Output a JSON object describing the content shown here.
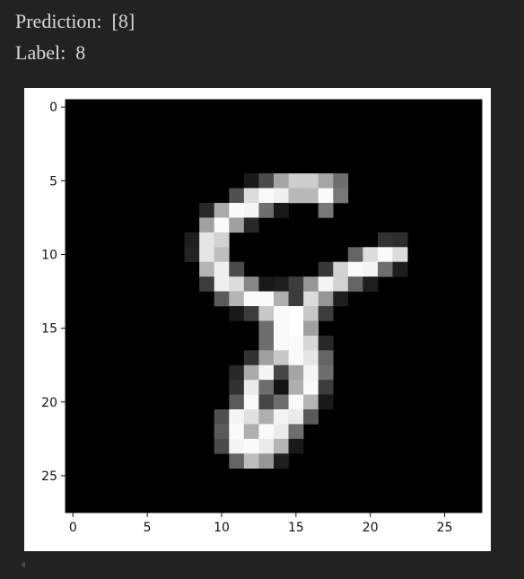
{
  "output": {
    "prediction_label": "Prediction:",
    "prediction_value": "[8]",
    "label_label": "Label:",
    "label_value": "8"
  },
  "chart_data": {
    "type": "heatmap",
    "colormap": "gray",
    "xlim": [
      -0.5,
      27.5
    ],
    "ylim": [
      27.5,
      -0.5
    ],
    "x_ticks": [
      0,
      5,
      10,
      15,
      20,
      25
    ],
    "y_ticks": [
      0,
      5,
      10,
      15,
      20,
      25
    ],
    "grid": false,
    "pixels": [
      {
        "r": 5,
        "c": 12,
        "v": 25
      },
      {
        "r": 5,
        "c": 13,
        "v": 75
      },
      {
        "r": 5,
        "c": 14,
        "v": 165
      },
      {
        "r": 5,
        "c": 15,
        "v": 205
      },
      {
        "r": 5,
        "c": 16,
        "v": 205
      },
      {
        "r": 5,
        "c": 17,
        "v": 165
      },
      {
        "r": 5,
        "c": 18,
        "v": 110
      },
      {
        "r": 6,
        "c": 11,
        "v": 80
      },
      {
        "r": 6,
        "c": 12,
        "v": 220
      },
      {
        "r": 6,
        "c": 13,
        "v": 250
      },
      {
        "r": 6,
        "c": 14,
        "v": 240
      },
      {
        "r": 6,
        "c": 15,
        "v": 185
      },
      {
        "r": 6,
        "c": 16,
        "v": 185
      },
      {
        "r": 6,
        "c": 17,
        "v": 250
      },
      {
        "r": 6,
        "c": 18,
        "v": 120
      },
      {
        "r": 7,
        "c": 9,
        "v": 40
      },
      {
        "r": 7,
        "c": 10,
        "v": 170
      },
      {
        "r": 7,
        "c": 11,
        "v": 250
      },
      {
        "r": 7,
        "c": 12,
        "v": 245
      },
      {
        "r": 7,
        "c": 13,
        "v": 110
      },
      {
        "r": 7,
        "c": 14,
        "v": 25
      },
      {
        "r": 7,
        "c": 17,
        "v": 120
      },
      {
        "r": 8,
        "c": 9,
        "v": 160
      },
      {
        "r": 8,
        "c": 10,
        "v": 250
      },
      {
        "r": 8,
        "c": 11,
        "v": 160
      },
      {
        "r": 8,
        "c": 12,
        "v": 40
      },
      {
        "r": 9,
        "c": 8,
        "v": 30
      },
      {
        "r": 9,
        "c": 9,
        "v": 230
      },
      {
        "r": 9,
        "c": 10,
        "v": 210
      },
      {
        "r": 9,
        "c": 21,
        "v": 50
      },
      {
        "r": 9,
        "c": 22,
        "v": 45
      },
      {
        "r": 10,
        "c": 8,
        "v": 35
      },
      {
        "r": 10,
        "c": 9,
        "v": 230
      },
      {
        "r": 10,
        "c": 10,
        "v": 190
      },
      {
        "r": 10,
        "c": 19,
        "v": 100
      },
      {
        "r": 10,
        "c": 20,
        "v": 220
      },
      {
        "r": 10,
        "c": 21,
        "v": 250
      },
      {
        "r": 10,
        "c": 22,
        "v": 220
      },
      {
        "r": 11,
        "c": 9,
        "v": 180
      },
      {
        "r": 11,
        "c": 10,
        "v": 240
      },
      {
        "r": 11,
        "c": 11,
        "v": 75
      },
      {
        "r": 11,
        "c": 17,
        "v": 55
      },
      {
        "r": 11,
        "c": 18,
        "v": 210
      },
      {
        "r": 11,
        "c": 19,
        "v": 250
      },
      {
        "r": 11,
        "c": 20,
        "v": 245
      },
      {
        "r": 11,
        "c": 21,
        "v": 110
      },
      {
        "r": 11,
        "c": 22,
        "v": 30
      },
      {
        "r": 12,
        "c": 9,
        "v": 60
      },
      {
        "r": 12,
        "c": 10,
        "v": 240
      },
      {
        "r": 12,
        "c": 11,
        "v": 220
      },
      {
        "r": 12,
        "c": 12,
        "v": 135
      },
      {
        "r": 12,
        "c": 13,
        "v": 25
      },
      {
        "r": 12,
        "c": 14,
        "v": 30
      },
      {
        "r": 12,
        "c": 15,
        "v": 60
      },
      {
        "r": 12,
        "c": 16,
        "v": 150
      },
      {
        "r": 12,
        "c": 17,
        "v": 245
      },
      {
        "r": 12,
        "c": 18,
        "v": 210
      },
      {
        "r": 12,
        "c": 19,
        "v": 100
      },
      {
        "r": 12,
        "c": 20,
        "v": 30
      },
      {
        "r": 13,
        "c": 10,
        "v": 90
      },
      {
        "r": 13,
        "c": 11,
        "v": 180
      },
      {
        "r": 13,
        "c": 12,
        "v": 250
      },
      {
        "r": 13,
        "c": 13,
        "v": 250
      },
      {
        "r": 13,
        "c": 14,
        "v": 175
      },
      {
        "r": 13,
        "c": 15,
        "v": 60
      },
      {
        "r": 13,
        "c": 16,
        "v": 220
      },
      {
        "r": 13,
        "c": 17,
        "v": 150
      },
      {
        "r": 13,
        "c": 18,
        "v": 30
      },
      {
        "r": 14,
        "c": 11,
        "v": 25
      },
      {
        "r": 14,
        "c": 12,
        "v": 60
      },
      {
        "r": 14,
        "c": 13,
        "v": 200
      },
      {
        "r": 14,
        "c": 14,
        "v": 250
      },
      {
        "r": 14,
        "c": 15,
        "v": 255
      },
      {
        "r": 14,
        "c": 16,
        "v": 200
      },
      {
        "r": 14,
        "c": 17,
        "v": 60
      },
      {
        "r": 15,
        "c": 13,
        "v": 110
      },
      {
        "r": 15,
        "c": 14,
        "v": 250
      },
      {
        "r": 15,
        "c": 15,
        "v": 255
      },
      {
        "r": 15,
        "c": 16,
        "v": 160
      },
      {
        "r": 16,
        "c": 13,
        "v": 110
      },
      {
        "r": 16,
        "c": 14,
        "v": 250
      },
      {
        "r": 16,
        "c": 15,
        "v": 250
      },
      {
        "r": 16,
        "c": 16,
        "v": 215
      },
      {
        "r": 16,
        "c": 17,
        "v": 40
      },
      {
        "r": 17,
        "c": 12,
        "v": 50
      },
      {
        "r": 17,
        "c": 13,
        "v": 160
      },
      {
        "r": 17,
        "c": 14,
        "v": 200
      },
      {
        "r": 17,
        "c": 15,
        "v": 250
      },
      {
        "r": 17,
        "c": 16,
        "v": 230
      },
      {
        "r": 17,
        "c": 17,
        "v": 100
      },
      {
        "r": 18,
        "c": 11,
        "v": 40
      },
      {
        "r": 18,
        "c": 12,
        "v": 170
      },
      {
        "r": 18,
        "c": 13,
        "v": 245
      },
      {
        "r": 18,
        "c": 14,
        "v": 70
      },
      {
        "r": 18,
        "c": 15,
        "v": 165
      },
      {
        "r": 18,
        "c": 16,
        "v": 245
      },
      {
        "r": 18,
        "c": 17,
        "v": 110
      },
      {
        "r": 19,
        "c": 11,
        "v": 50
      },
      {
        "r": 19,
        "c": 12,
        "v": 235
      },
      {
        "r": 19,
        "c": 13,
        "v": 110
      },
      {
        "r": 19,
        "c": 14,
        "v": 20
      },
      {
        "r": 19,
        "c": 15,
        "v": 175
      },
      {
        "r": 19,
        "c": 16,
        "v": 250
      },
      {
        "r": 19,
        "c": 17,
        "v": 60
      },
      {
        "r": 20,
        "c": 11,
        "v": 90
      },
      {
        "r": 20,
        "c": 12,
        "v": 250
      },
      {
        "r": 20,
        "c": 13,
        "v": 70
      },
      {
        "r": 20,
        "c": 14,
        "v": 110
      },
      {
        "r": 20,
        "c": 15,
        "v": 250
      },
      {
        "r": 20,
        "c": 16,
        "v": 180
      },
      {
        "r": 20,
        "c": 17,
        "v": 25
      },
      {
        "r": 21,
        "c": 10,
        "v": 80
      },
      {
        "r": 21,
        "c": 11,
        "v": 245
      },
      {
        "r": 21,
        "c": 12,
        "v": 225
      },
      {
        "r": 21,
        "c": 13,
        "v": 175
      },
      {
        "r": 21,
        "c": 14,
        "v": 245
      },
      {
        "r": 21,
        "c": 15,
        "v": 235
      },
      {
        "r": 21,
        "c": 16,
        "v": 90
      },
      {
        "r": 22,
        "c": 10,
        "v": 90
      },
      {
        "r": 22,
        "c": 11,
        "v": 250
      },
      {
        "r": 22,
        "c": 12,
        "v": 175
      },
      {
        "r": 22,
        "c": 13,
        "v": 250
      },
      {
        "r": 22,
        "c": 14,
        "v": 235
      },
      {
        "r": 22,
        "c": 15,
        "v": 110
      },
      {
        "r": 23,
        "c": 10,
        "v": 75
      },
      {
        "r": 23,
        "c": 11,
        "v": 245
      },
      {
        "r": 23,
        "c": 12,
        "v": 250
      },
      {
        "r": 23,
        "c": 13,
        "v": 235
      },
      {
        "r": 23,
        "c": 14,
        "v": 180
      },
      {
        "r": 23,
        "c": 15,
        "v": 25
      },
      {
        "r": 24,
        "c": 11,
        "v": 100
      },
      {
        "r": 24,
        "c": 12,
        "v": 190
      },
      {
        "r": 24,
        "c": 13,
        "v": 150
      },
      {
        "r": 24,
        "c": 14,
        "v": 30
      }
    ]
  }
}
